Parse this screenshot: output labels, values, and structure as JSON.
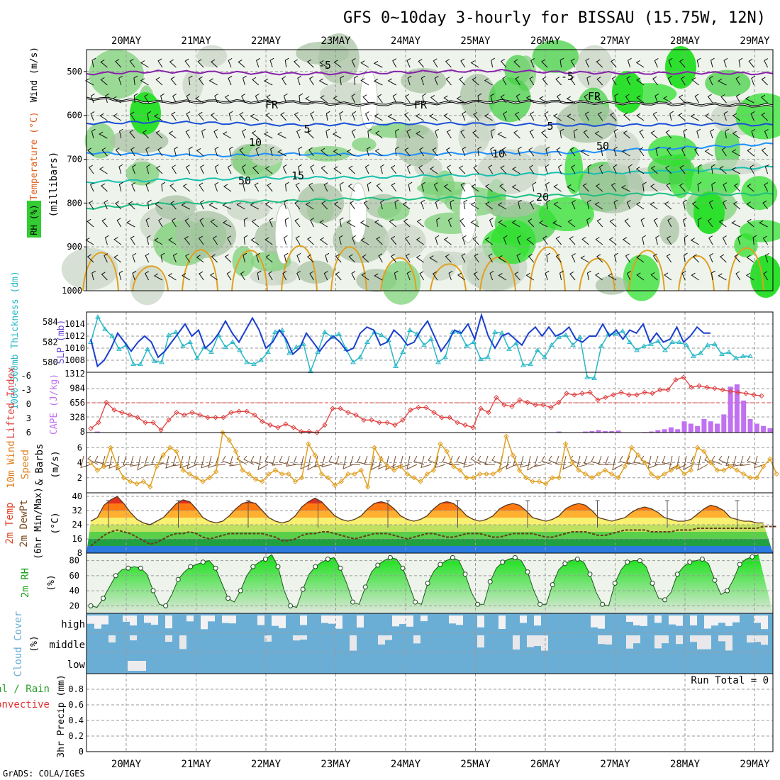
{
  "title": "GFS 0~10day 3-hourly for BISSAU (15.75W, 12N)",
  "footer": "GrADS: COLA/IGES",
  "colors": {
    "rh_green": "#33cc33",
    "temp_purple": "#8822aa",
    "freezing": "#000000",
    "dark_blue": "#1a4fd6",
    "mid_blue": "#1e90ff",
    "teal": "#18c0b0",
    "green_line": "#1fbf80",
    "orange": "#e0a020",
    "cloud": "#6aaed6",
    "thickness": "#27b8c8",
    "slp": "#1b3fcf",
    "lifted": "#e04040",
    "cape": "#c070f0"
  },
  "chart_data": [
    {
      "type": "heatmap",
      "panel": "upper-air",
      "ylabel_parts": [
        "RH (%)",
        "Temperature (°C)",
        "Wind (m/s)"
      ],
      "ylabel2": "(millibars)",
      "yticks": [
        "500",
        "600",
        "700",
        "800",
        "900",
        "1000"
      ],
      "ylim": [
        1000,
        450
      ],
      "contour_labels": [
        "-5",
        "-5",
        "FR",
        "FR",
        "FR",
        "5",
        "5",
        "10",
        "10",
        "15",
        "20",
        "50",
        "50"
      ],
      "isotherms": [
        {
          "name": "-5",
          "color": "purple",
          "p": [
            505,
            500,
            502,
            505,
            504,
            500,
            498,
            502,
            504,
            503,
            505
          ]
        },
        {
          "name": "FR",
          "color": "black",
          "p": [
            560,
            570,
            568,
            570,
            575,
            572,
            568,
            570,
            572,
            575,
            578
          ]
        },
        {
          "name": "5",
          "color": "dark_blue",
          "p": [
            618,
            615,
            618,
            622,
            620,
            618,
            620,
            622,
            622,
            620,
            622
          ]
        },
        {
          "name": "10",
          "color": "mid_blue",
          "p": [
            685,
            690,
            692,
            688,
            690,
            688,
            685,
            685,
            678,
            672,
            665
          ]
        },
        {
          "name": "15",
          "color": "teal",
          "p": [
            752,
            748,
            745,
            742,
            742,
            738,
            735,
            732,
            730,
            725,
            718
          ]
        },
        {
          "name": "20",
          "color": "green_line",
          "p": [
            812,
            802,
            798,
            795,
            790,
            790,
            785,
            782,
            780,
            780,
            780
          ]
        }
      ]
    },
    {
      "type": "line",
      "panel": "thickness-slp",
      "ylabel_left": "1000-500mb Thickness (dm)",
      "ylabel_right": "SLP (mb)",
      "yticks_left": [
        "580",
        "582",
        "584"
      ],
      "yticks_right": [
        "1008",
        "1010",
        "1012",
        "1014"
      ],
      "ylim_left": [
        579,
        585
      ],
      "ylim_right": [
        1006,
        1016
      ],
      "series": [
        {
          "name": "1000-500mb Thickness",
          "color": "thickness",
          "values": [
            582.0,
            584.5,
            583.3,
            582.6,
            581.3,
            581.7,
            579.8,
            579.8,
            581.3,
            580.1,
            580.0,
            582.7,
            583.0,
            581.6,
            582.0,
            580.4,
            581.5,
            581.0,
            582.7,
            581.5,
            582.0,
            581.2,
            580.0,
            579.8,
            580.2,
            581.0,
            583.0,
            583.2,
            580.9,
            581.5,
            581.8,
            579.1,
            581.0,
            583.0,
            582.5,
            582.8,
            581.3,
            580.0,
            580.5,
            582.0,
            583.0,
            582.7,
            582.2,
            579.6,
            581.0,
            583.2,
            582.8,
            581.7,
            582.3,
            580.0,
            580.5,
            583.0,
            583.0,
            581.6,
            582.0,
            580.3,
            580.5,
            583.0,
            582.9,
            581.3,
            581.9,
            579.7,
            579.8,
            581.2,
            580.5,
            581.7,
            582.5,
            582.7,
            581.7,
            582.5,
            578.5,
            578.4,
            581.6,
            582.8,
            582.8,
            583.1,
            582.0,
            581.2,
            581.6,
            581.8,
            582.1,
            581.2,
            582.0,
            582.0,
            581.7,
            580.6,
            580.9,
            581.7,
            581.8,
            580.8,
            581.0,
            580.4,
            580.6,
            580.6
          ]
        },
        {
          "name": "SLP",
          "color": "slp",
          "values": [
            1011.5,
            1007.0,
            1008.0,
            1010.0,
            1012.5,
            1011.0,
            1009.5,
            1011.0,
            1012.0,
            1011.0,
            1008.5,
            1009.5,
            1011.0,
            1012.5,
            1014.0,
            1012.0,
            1013.0,
            1010.0,
            1011.0,
            1012.5,
            1014.5,
            1012.5,
            1011.0,
            1013.0,
            1015.0,
            1013.0,
            1010.0,
            1011.0,
            1013.0,
            1011.5,
            1009.0,
            1010.0,
            1012.5,
            1011.0,
            1009.5,
            1011.0,
            1012.0,
            1011.0,
            1009.5,
            1010.0,
            1012.5,
            1013.5,
            1013.0,
            1010.5,
            1011.0,
            1013.0,
            1012.0,
            1010.5,
            1011.0,
            1013.0,
            1014.5,
            1012.0,
            1009.5,
            1011.0,
            1013.0,
            1012.5,
            1014.0,
            1011.5,
            1015.5,
            1012.0,
            1010.0,
            1012.0,
            1012.5,
            1011.5,
            1010.5,
            1012.5,
            1013.5,
            1012.0,
            1013.5,
            1012.0,
            1012.5,
            1013.5,
            1011.5,
            1011.0,
            1012.0,
            1012.0,
            1014.0,
            1012.0,
            1013.0,
            1011.5,
            1013.0,
            1012.5,
            1014.0,
            1011.0,
            1012.5,
            1011.0,
            1011.5,
            1013.5,
            1011.0,
            1012.0,
            1013.5,
            1012.5,
            1012.5
          ]
        }
      ]
    },
    {
      "type": "bar",
      "panel": "cape-li",
      "ylabel_left": "Lifted Index",
      "ylabel_right": "CAPE (J/kg)",
      "yticks_left": [
        "-6",
        "-3",
        "0",
        "3",
        "6"
      ],
      "yticks_right": [
        "8",
        "328",
        "656",
        "984",
        "1312"
      ],
      "ylim_left": [
        6,
        -6
      ],
      "ylim_right": [
        8,
        1312
      ],
      "series": [
        {
          "name": "Lifted Index",
          "color": "lifted",
          "values": [
            5.2,
            4.0,
            0.0,
            1.5,
            2.0,
            2.5,
            3.0,
            4.0,
            4.0,
            5.5,
            3.5,
            2.0,
            2.5,
            2.0,
            2.5,
            3.0,
            3.0,
            3.0,
            2.0,
            1.8,
            1.8,
            2.5,
            3.8,
            4.5,
            5.0,
            4.3,
            5.0,
            5.8,
            5.8,
            6.0,
            4.5,
            1.2,
            1.2,
            2.0,
            2.5,
            3.5,
            3.5,
            4.0,
            4.0,
            4.5,
            3.5,
            1.5,
            1.0,
            1.0,
            2.0,
            3.0,
            3.0,
            4.0,
            4.5,
            5.0,
            1.2,
            2.0,
            -1.0,
            0.5,
            0.8,
            -0.5,
            0.0,
            0.5,
            0.5,
            1.0,
            0.0,
            -1.8,
            -1.5,
            -1.8,
            -2.0,
            -0.5,
            -1.0,
            -1.5,
            -2.0,
            -1.5,
            -1.5,
            -2.0,
            -1.8,
            -2.5,
            -2.5,
            -4.5,
            -5.0,
            -3.0,
            -3.3,
            -3.0,
            -2.8,
            -2.5,
            -2.2,
            -2.0,
            -1.8,
            -1.5,
            -1.3
          ]
        },
        {
          "name": "CAPE",
          "color": "cape",
          "values": [
            0,
            30,
            0,
            0,
            0,
            0,
            0,
            0,
            0,
            0,
            0,
            0,
            0,
            0,
            0,
            0,
            0,
            0,
            0,
            0,
            0,
            0,
            0,
            0,
            0,
            0,
            0,
            0,
            0,
            0,
            0,
            0,
            0,
            0,
            0,
            0,
            0,
            0,
            0,
            0,
            0,
            0,
            0,
            0,
            0,
            0,
            0,
            0,
            0,
            0,
            0,
            0,
            0,
            0,
            0,
            0,
            0,
            0,
            0,
            0,
            0,
            0,
            0,
            0,
            0,
            0,
            0,
            0,
            0,
            0,
            0,
            30,
            0,
            0,
            0,
            30,
            40,
            60,
            40,
            40,
            50,
            0,
            0,
            0,
            20,
            30,
            60,
            80,
            120,
            80,
            250,
            200,
            150,
            300,
            250,
            200,
            400,
            1000,
            1050,
            700,
            300,
            200,
            150,
            100
          ]
        }
      ]
    },
    {
      "type": "line",
      "panel": "wind10m",
      "ylabel": "10m Wind Speed & Barbs (m/s)",
      "yticks": [
        "2",
        "4",
        "6"
      ],
      "ylim": [
        0,
        8
      ],
      "series": [
        {
          "name": "10m Wind Speed",
          "color": "orange",
          "values": [
            4.0,
            3.0,
            3.5,
            6.0,
            3.5,
            2.0,
            1.5,
            1.2,
            1.5,
            0.8,
            3.5,
            5.0,
            6.0,
            5.5,
            3.0,
            2.5,
            2.0,
            1.5,
            2.0,
            2.8,
            8.0,
            7.0,
            5.5,
            3.0,
            2.5,
            1.8,
            1.5,
            2.5,
            3.0,
            2.5,
            2.5,
            1.5,
            2.0,
            6.5,
            5.0,
            2.5,
            2.0,
            1.0,
            1.5,
            2.5,
            2.5,
            3.0,
            0.8,
            6.0,
            4.5,
            3.5,
            3.0,
            3.5,
            2.5,
            2.0,
            1.5,
            2.5,
            3.0,
            6.5,
            5.5,
            3.5,
            3.0,
            2.0,
            2.0,
            2.5,
            2.5,
            2.5,
            3.0,
            7.5,
            5.0,
            3.0,
            2.0,
            1.5,
            1.5,
            1.2,
            2.0,
            2.0,
            6.5,
            4.0,
            3.0,
            2.5,
            2.0,
            2.5,
            3.0,
            2.5,
            2.0,
            3.5,
            6.0,
            5.0,
            4.0,
            2.5,
            2.0,
            2.5,
            3.0,
            3.5,
            2.5,
            3.0,
            6.0,
            5.5,
            4.0,
            3.0,
            3.0,
            3.5,
            3.0,
            2.5,
            2.0,
            2.0,
            3.5,
            4.5,
            2.5
          ]
        }
      ]
    },
    {
      "type": "area",
      "panel": "temp2m",
      "ylabel": "2m Temp 2m DewPt (6hr Min/Max) (°C)",
      "yticks": [
        "8",
        "16",
        "24",
        "32",
        "40"
      ],
      "ylim": [
        8,
        42
      ],
      "series": [
        {
          "name": "2m Temp",
          "values": [
            26,
            28,
            35,
            38,
            40,
            36,
            31,
            27,
            25,
            24,
            26,
            28,
            32,
            36,
            38,
            37,
            33,
            28,
            26,
            25,
            26,
            29,
            33,
            36,
            37,
            36,
            32,
            28,
            26,
            25,
            26,
            29,
            34,
            37,
            39,
            37,
            33,
            29,
            27,
            26,
            27,
            29,
            33,
            36,
            37,
            36,
            33,
            29,
            27,
            26,
            27,
            29,
            33,
            36,
            37,
            36,
            33,
            29,
            27,
            26,
            27,
            29,
            33,
            35,
            36,
            35,
            32,
            28,
            27,
            26,
            27,
            29,
            33,
            35,
            36,
            35,
            32,
            28,
            27,
            26,
            27,
            28,
            31,
            33,
            34,
            33,
            31,
            28,
            27,
            26,
            26,
            27,
            30,
            33,
            35,
            34,
            32,
            28,
            27,
            26,
            26,
            25,
            25
          ]
        },
        {
          "name": "2m DewPt",
          "values": [
            12,
            15,
            18,
            20,
            21,
            20,
            19,
            17,
            15,
            13,
            14,
            16,
            18,
            19,
            19,
            20,
            19,
            17,
            16,
            17,
            18,
            19,
            19,
            19,
            19,
            19,
            19,
            18,
            17,
            15,
            15,
            16,
            18,
            19,
            19,
            20,
            20,
            19,
            18,
            17,
            16,
            17,
            18,
            19,
            19,
            19,
            18,
            17,
            16,
            17,
            18,
            19,
            19,
            18,
            17,
            17,
            18,
            19,
            19,
            19,
            18,
            17,
            17,
            18,
            19,
            19,
            19,
            19,
            18,
            17,
            17,
            18,
            19,
            20,
            20,
            20,
            19,
            18,
            18,
            19,
            20,
            21,
            21,
            21,
            21,
            20,
            20,
            20,
            20,
            21,
            21,
            21,
            22,
            22,
            22,
            22,
            22,
            22,
            22,
            22,
            22,
            22,
            23,
            23,
            23
          ]
        }
      ]
    },
    {
      "type": "area",
      "panel": "rh2m",
      "ylabel": "2m RH (%)",
      "yticks": [
        "20",
        "40",
        "60",
        "80"
      ],
      "ylim": [
        10,
        90
      ],
      "series": [
        {
          "name": "2m RH",
          "values": [
            20,
            18,
            30,
            45,
            60,
            68,
            70,
            72,
            70,
            62,
            40,
            22,
            20,
            35,
            55,
            65,
            72,
            75,
            78,
            80,
            70,
            50,
            30,
            25,
            40,
            60,
            72,
            78,
            82,
            88,
            72,
            40,
            20,
            18,
            42,
            62,
            72,
            78,
            82,
            84,
            70,
            50,
            25,
            22,
            45,
            65,
            74,
            80,
            84,
            82,
            70,
            48,
            25,
            22,
            50,
            66,
            75,
            80,
            84,
            80,
            62,
            38,
            22,
            22,
            52,
            70,
            78,
            82,
            84,
            80,
            65,
            40,
            22,
            22,
            48,
            68,
            76,
            80,
            82,
            78,
            62,
            38,
            22,
            20,
            50,
            68,
            78,
            80,
            80,
            72,
            50,
            30,
            28,
            38,
            62,
            72,
            78,
            80,
            82,
            76,
            54,
            35,
            40,
            55,
            75,
            82,
            85,
            88
          ]
        }
      ]
    },
    {
      "type": "heatmap",
      "panel": "cloud",
      "ylabel": "Cloud Cover (%)",
      "levels": [
        "high",
        "middle",
        "low"
      ]
    },
    {
      "type": "line",
      "panel": "precip",
      "ylabel": "3hr Precip (mm)",
      "ylabel_parts": [
        "Total / Rain",
        "Convective"
      ],
      "yticks": [
        "0",
        "0.2",
        "0.4",
        "0.6",
        "0.8"
      ],
      "ylim": [
        0,
        1.0
      ],
      "run_total": "Run Total = 0"
    }
  ],
  "time_axis": {
    "labels": [
      "20MAY",
      "21MAY",
      "22MAY",
      "23MAY",
      "24MAY",
      "25MAY",
      "26MAY",
      "27MAY",
      "28MAY",
      "29MAY"
    ]
  }
}
